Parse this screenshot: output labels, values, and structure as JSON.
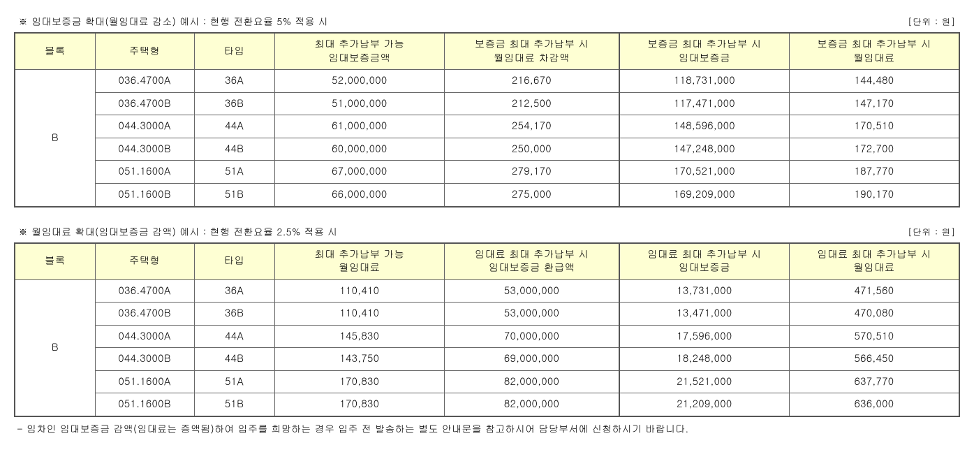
{
  "table1": {
    "title": "※  임대보증금  확대(월임대료  감소)  예시  :  현행  전환요율  5%  적용  시",
    "unit": "[단위  :  원]",
    "headers": [
      "블록",
      "주택형",
      "타입",
      "최대  추가납부  가능\n임대보증금액",
      "보증금  최대  추가납부  시\n월임대료  차감액",
      "보증금  최대  추가납부  시\n임대보증금",
      "보증금  최대  추가납부  시\n월임대료"
    ],
    "block": "B",
    "rows": [
      [
        "036.4700A",
        "36A",
        "52,000,000",
        "216,670",
        "118,731,000",
        "144,480"
      ],
      [
        "036.4700B",
        "36B",
        "51,000,000",
        "212,500",
        "117,471,000",
        "147,170"
      ],
      [
        "044.3000A",
        "44A",
        "61,000,000",
        "254,170",
        "148,596,000",
        "170,510"
      ],
      [
        "044.3000B",
        "44B",
        "60,000,000",
        "250,000",
        "147,248,000",
        "172,700"
      ],
      [
        "051.1600A",
        "51A",
        "67,000,000",
        "279,170",
        "170,521,000",
        "187,770"
      ],
      [
        "051.1600B",
        "51B",
        "66,000,000",
        "275,000",
        "169,209,000",
        "190,170"
      ]
    ]
  },
  "table2": {
    "title": "※  월임대료  확대(임대보증금  감액)  예시  :  현행  전환요율  2.5%  적용  시",
    "unit": "[단위  :  원]",
    "headers": [
      "블록",
      "주택형",
      "타입",
      "최대  추가납부  가능\n월임대료",
      "임대료  최대  추가납부  시\n임대보증금  환급액",
      "임대료  최대  추가납부  시\n임대보증금",
      "임대료  최대  추가납부  시\n월임대료"
    ],
    "block": "B",
    "rows": [
      [
        "036.4700A",
        "36A",
        "110,410",
        "53,000,000",
        "13,731,000",
        "471,560"
      ],
      [
        "036.4700B",
        "36B",
        "110,410",
        "53,000,000",
        "13,471,000",
        "470,080"
      ],
      [
        "044.3000A",
        "44A",
        "145,830",
        "70,000,000",
        "17,596,000",
        "570,510"
      ],
      [
        "044.3000B",
        "44B",
        "143,750",
        "69,000,000",
        "18,248,000",
        "566,450"
      ],
      [
        "051.1600A",
        "51A",
        "170,830",
        "82,000,000",
        "21,521,000",
        "637,770"
      ],
      [
        "051.1600B",
        "51B",
        "170,830",
        "82,000,000",
        "21,209,000",
        "636,000"
      ]
    ]
  },
  "footnote": "-  임차인  임대보증금  감액(임대료는  증액됨)하여  입주를  희망하는  경우  입주  전  발송하는  별도  안내문을  참고하시어  담당부서에  신청하시기  바랍니다."
}
